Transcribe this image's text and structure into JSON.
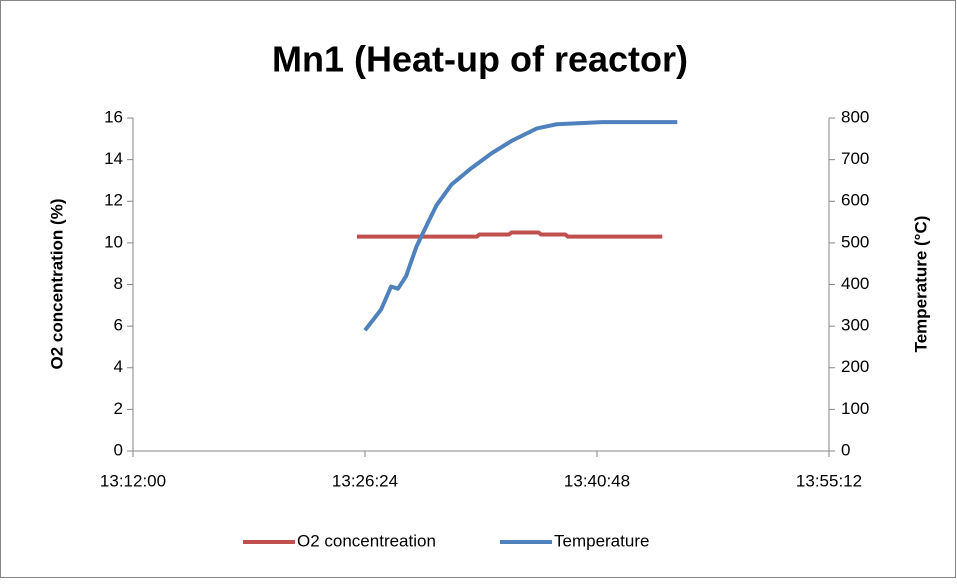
{
  "chart_data": {
    "type": "line",
    "title": "Mn1 (Heat-up of reactor)",
    "y_label": "O2 concentration (%)",
    "y2_label": "Temperature (°C)",
    "xlim": [
      47520,
      50112
    ],
    "xticks": [
      {
        "value": 47520,
        "label": "13:12:00"
      },
      {
        "value": 48384,
        "label": "13:26:24"
      },
      {
        "value": 49248,
        "label": "13:40:48"
      },
      {
        "value": 50112,
        "label": "13:55:12"
      }
    ],
    "ylim": [
      0,
      16
    ],
    "yticks": [
      0,
      2,
      4,
      6,
      8,
      10,
      12,
      14,
      16
    ],
    "y2lim": [
      0,
      800
    ],
    "y2ticks": [
      0,
      100,
      200,
      300,
      400,
      500,
      600,
      700,
      800
    ],
    "legend": "bottom",
    "series": [
      {
        "name": "O2 concentreation",
        "color": "#c0504d",
        "x": [
          48354,
          48800,
          48810,
          48920,
          48930,
          49030,
          49040,
          49130,
          49140,
          49491
        ],
        "values": [
          10.3,
          10.3,
          10.4,
          10.4,
          10.5,
          10.5,
          10.4,
          10.4,
          10.3,
          10.3
        ]
      },
      {
        "name": "Temperature",
        "color": "#4f81bd",
        "axis": "y2",
        "x": [
          48384,
          48444,
          48481,
          48507,
          48537,
          48575,
          48612,
          48650,
          48706,
          48781,
          48855,
          48930,
          49024,
          49098,
          49267,
          49416,
          49547
        ],
        "values": [
          290,
          340,
          395,
          390,
          420,
          490,
          540,
          590,
          640,
          680,
          715,
          745,
          775,
          785,
          790,
          790,
          790
        ]
      }
    ]
  }
}
